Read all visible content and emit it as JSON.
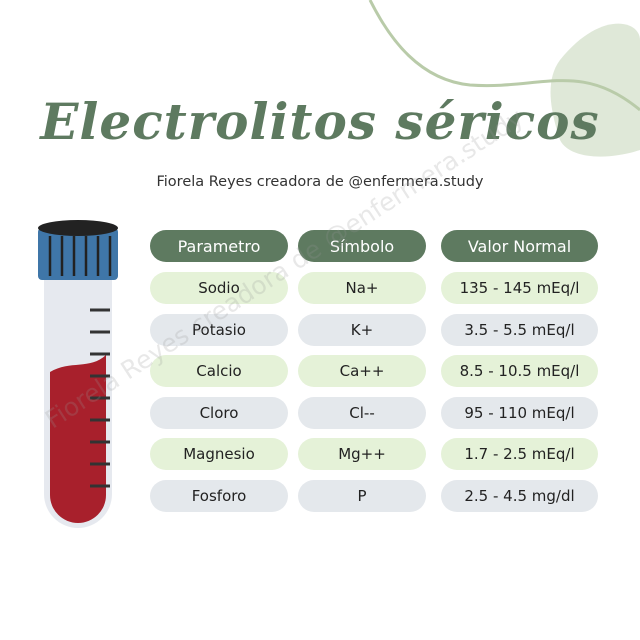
{
  "title": "Electrolitos  séricos",
  "subtitle": "Fiorela Reyes creadora de @enfermera.study",
  "watermark": "Fiorela Reyes creadora de @enfermera.study",
  "colors": {
    "header": "#5e7a60",
    "row_green": "#e5f2d8",
    "row_gray": "#e4e8ec",
    "blood": "#a8202c",
    "cap": "#3f76a8"
  },
  "table": {
    "headers": [
      "Parametro",
      "Símbolo",
      "Valor Normal"
    ],
    "rows": [
      [
        "Sodio",
        "Na+",
        "135 - 145 mEq/l"
      ],
      [
        "Potasio",
        "K+",
        "3.5 - 5.5 mEq/l"
      ],
      [
        "Calcio",
        "Ca++",
        "8.5 - 10.5 mEq/l"
      ],
      [
        "Cloro",
        "Cl--",
        "95 - 110 mEq/l"
      ],
      [
        "Magnesio",
        "Mg++",
        "1.7 - 2.5 mEq/l"
      ],
      [
        "Fosforo",
        "P",
        "2.5 - 4.5 mg/dl"
      ]
    ]
  }
}
